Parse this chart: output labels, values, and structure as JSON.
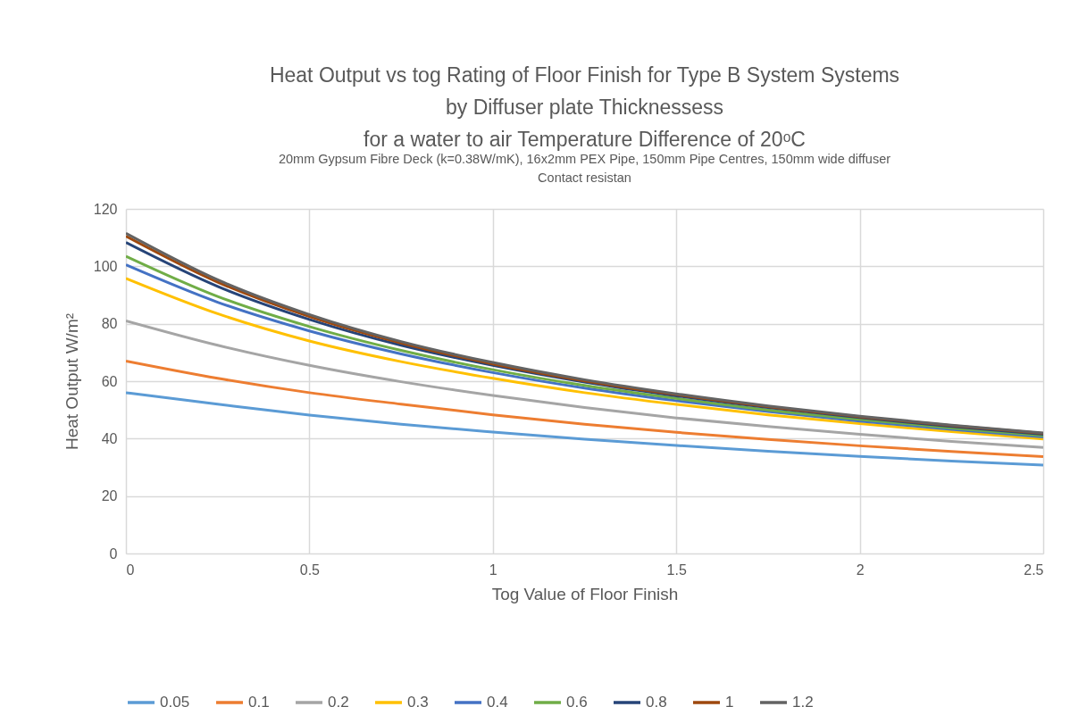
{
  "chart_data": {
    "type": "line",
    "title": "Heat Output vs tog Rating of Floor Finish for Type B System Systems\nby Diffuser plate Thicknessess\nfor a water to air Temperature Difference of 20ᵒC",
    "subtitle": "20mm Gypsum Fibre Deck (k=0.38W/mK), 16x2mm PEX Pipe, 150mm Pipe Centres, 150mm wide diffuser\nContact resistan",
    "xlabel": "Tog Value of Floor Finish",
    "ylabel": "Heat Output W/m²",
    "x": [
      0,
      0.25,
      0.5,
      0.75,
      1,
      1.25,
      1.5,
      1.75,
      2,
      2.25,
      2.5
    ],
    "series": [
      {
        "name": "0.05",
        "color": "#5b9bd5",
        "values": [
          56,
          52,
          48.2,
          45,
          42.3,
          39.8,
          37.6,
          35.6,
          33.8,
          32.2,
          30.8
        ]
      },
      {
        "name": "0.1",
        "color": "#ed7d31",
        "values": [
          67,
          61,
          56,
          52,
          48.3,
          45,
          42.2,
          39.7,
          37.5,
          35.5,
          33.7
        ]
      },
      {
        "name": "0.2",
        "color": "#a5a5a5",
        "values": [
          81,
          72.5,
          65.5,
          59.8,
          55,
          50.8,
          47.2,
          44.2,
          41.5,
          39,
          36.9
        ]
      },
      {
        "name": "0.3",
        "color": "#ffc000",
        "values": [
          95.8,
          83.5,
          74,
          66.8,
          61,
          56,
          51.9,
          48.3,
          45.2,
          42.4,
          39.9
        ]
      },
      {
        "name": "0.4",
        "color": "#4472c4",
        "values": [
          100.5,
          87.5,
          77.5,
          69.5,
          63,
          57.6,
          53.2,
          49.4,
          46.1,
          43.2,
          40.6
        ]
      },
      {
        "name": "0.6",
        "color": "#70ad47",
        "values": [
          103.5,
          89.5,
          79,
          70.7,
          64,
          58.5,
          54,
          50,
          46.7,
          43.7,
          41
        ]
      },
      {
        "name": "0.8",
        "color": "#264478",
        "values": [
          108.3,
          93,
          81.5,
          72.5,
          65.5,
          59.7,
          54.9,
          50.8,
          47.3,
          44.2,
          41.5
        ]
      },
      {
        "name": "1",
        "color": "#9e480e",
        "values": [
          110.5,
          94.5,
          82.5,
          73.3,
          66,
          60.1,
          55.3,
          51.1,
          47.6,
          44.5,
          41.8
        ]
      },
      {
        "name": "1.2",
        "color": "#636363",
        "values": [
          111.5,
          95.3,
          83.2,
          73.8,
          66.5,
          60.5,
          55.6,
          51.4,
          47.8,
          44.7,
          42
        ]
      }
    ],
    "xlim": [
      0,
      2.5
    ],
    "xticks": [
      0,
      0.5,
      1,
      1.5,
      2,
      2.5
    ],
    "ylim": [
      0,
      120
    ],
    "yticks": [
      0,
      20,
      40,
      60,
      80,
      100,
      120
    ],
    "grid": true,
    "legend": "bottom"
  }
}
